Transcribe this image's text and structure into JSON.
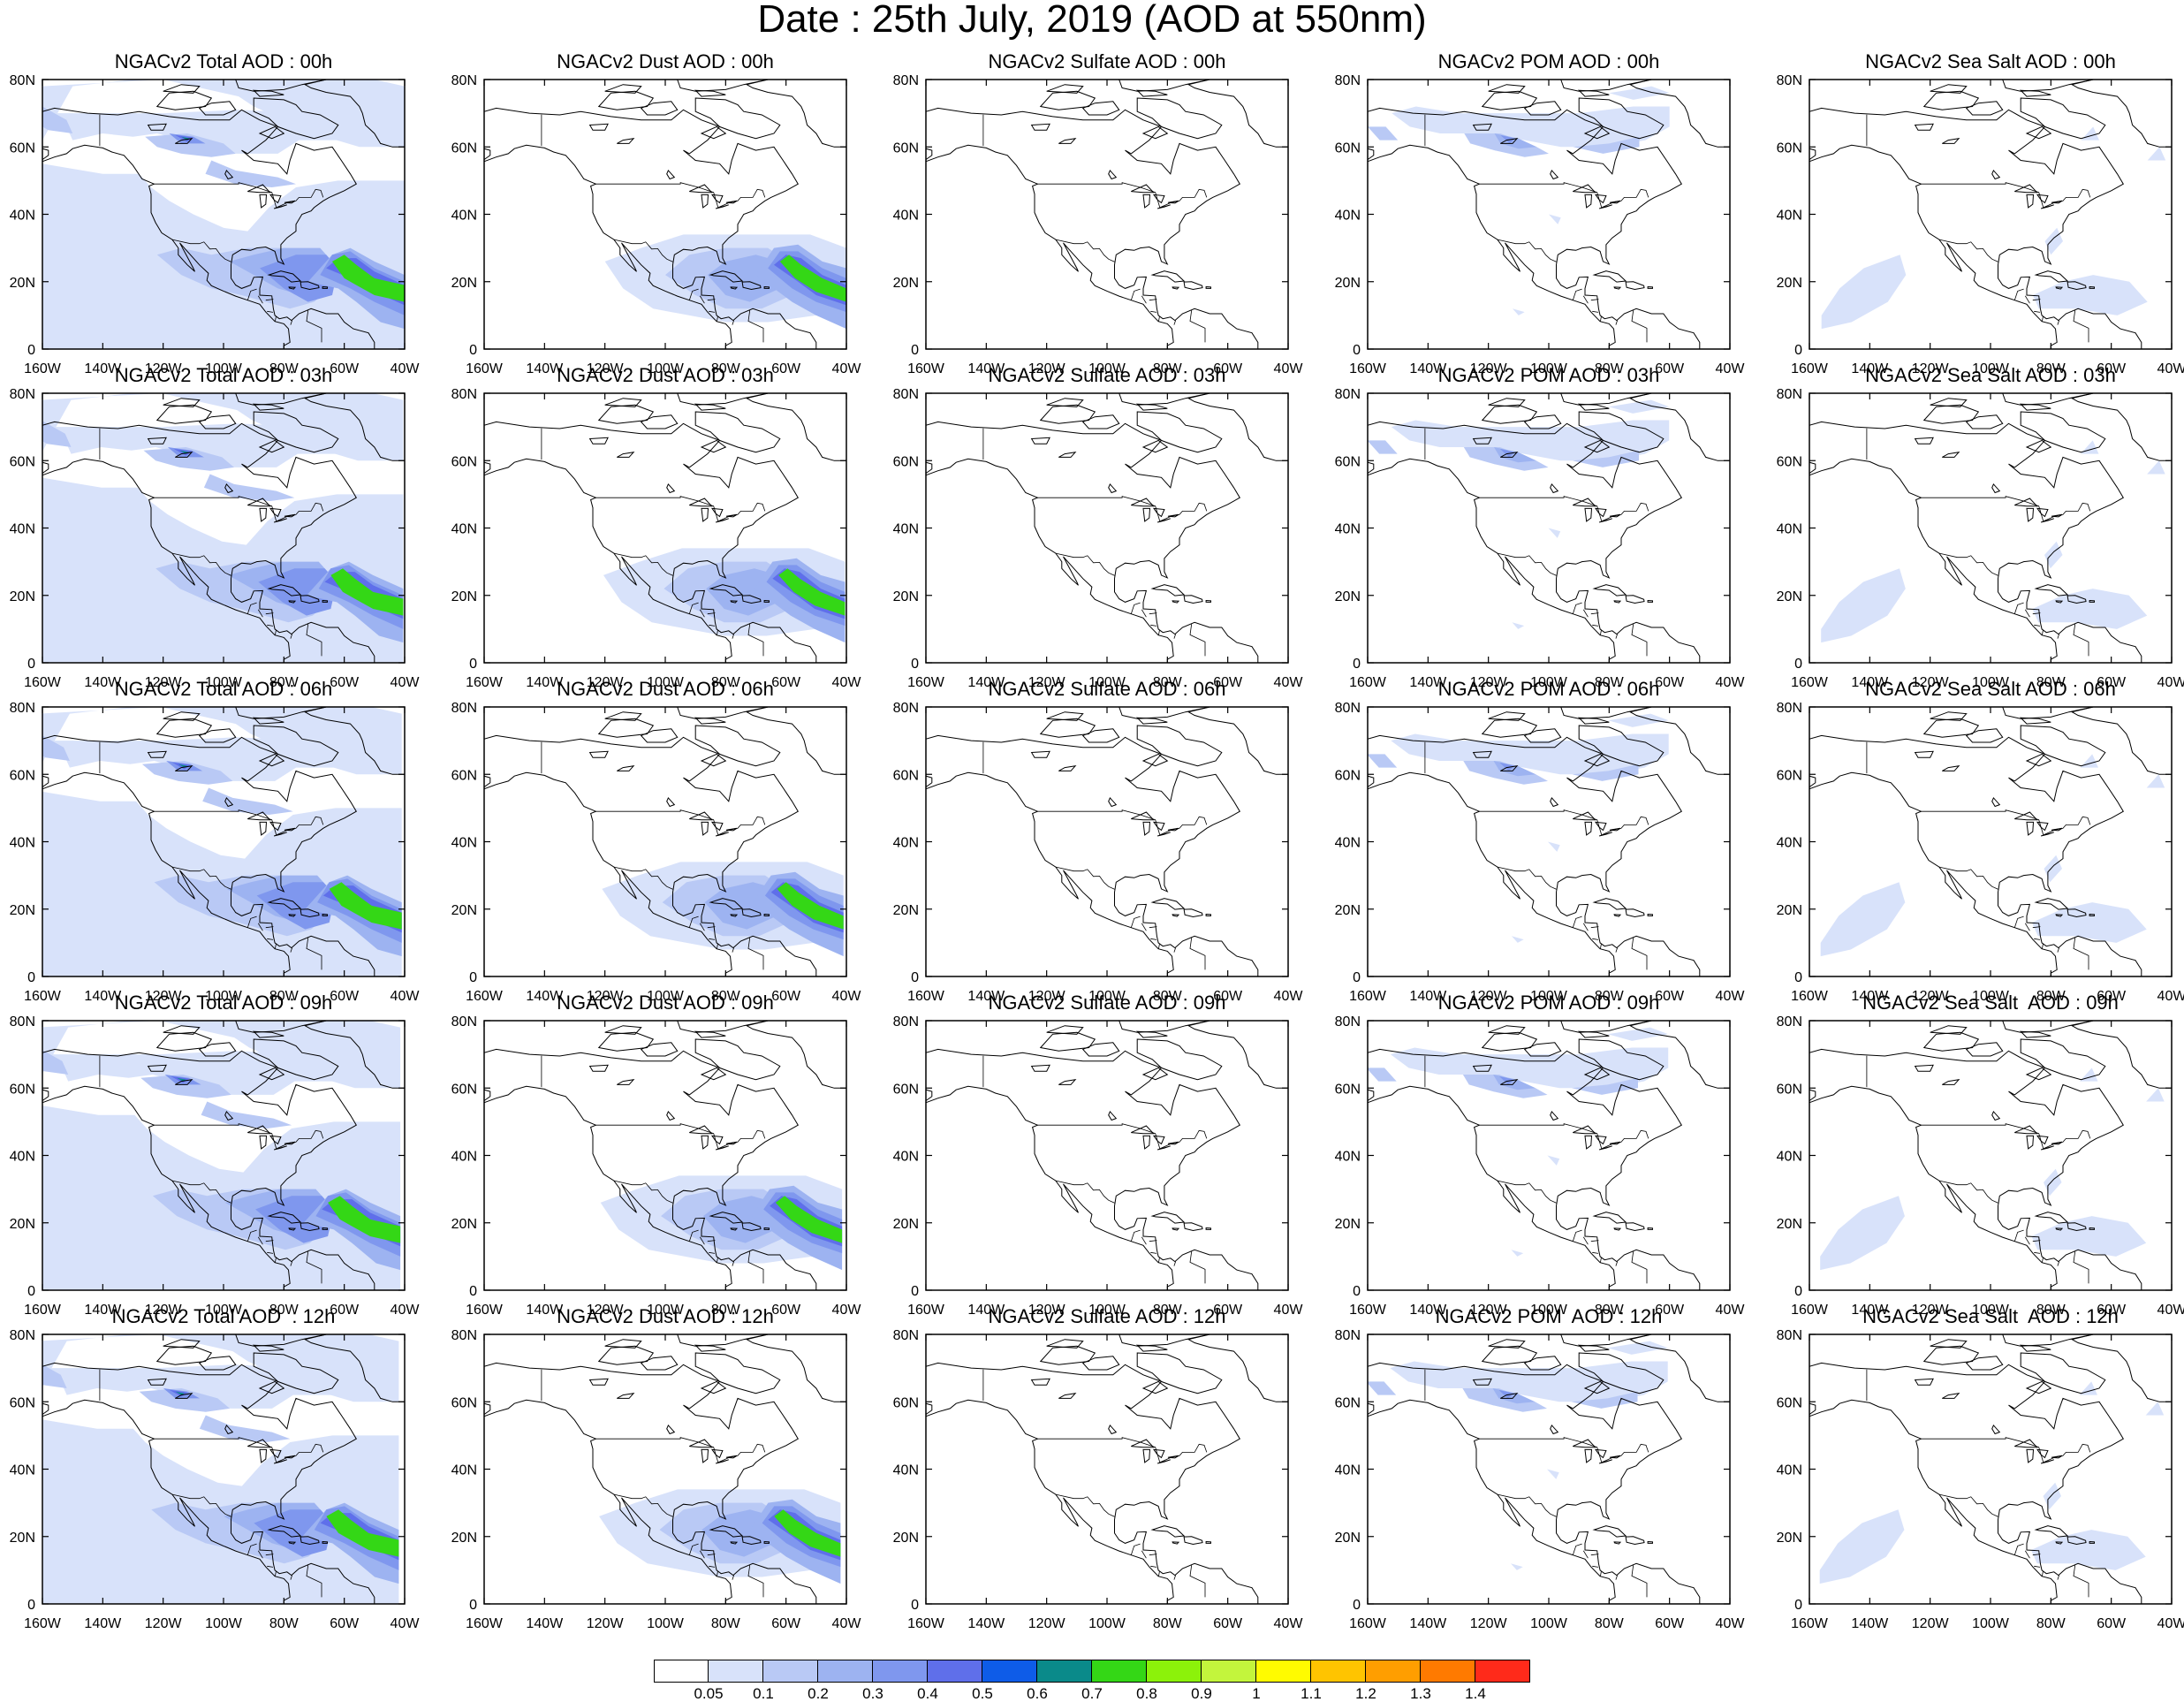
{
  "title": "Date : 25th July, 2019 (AOD at 550nm)",
  "panels": [
    {
      "title": "NGACv2 Total AOD : 00h",
      "species": "total"
    },
    {
      "title": "NGACv2 Dust AOD : 00h",
      "species": "dust"
    },
    {
      "title": "NGACv2 Sulfate AOD : 00h",
      "species": "sulfate"
    },
    {
      "title": "NGACv2 POM AOD : 00h",
      "species": "pom"
    },
    {
      "title": "NGACv2 Sea Salt AOD : 00h",
      "species": "seasalt"
    },
    {
      "title": "NGACv2 Total AOD : 03h",
      "species": "total"
    },
    {
      "title": "NGACv2 Dust AOD : 03h",
      "species": "dust"
    },
    {
      "title": "NGACv2 Sulfate AOD : 03h",
      "species": "sulfate"
    },
    {
      "title": "NGACv2 POM AOD : 03h",
      "species": "pom"
    },
    {
      "title": "NGACv2 Sea Salt AOD : 03h",
      "species": "seasalt"
    },
    {
      "title": "NGACv2 Total AOD : 06h",
      "species": "total"
    },
    {
      "title": "NGACv2 Dust AOD : 06h",
      "species": "dust"
    },
    {
      "title": "NGACv2 Sulfate AOD : 06h",
      "species": "sulfate"
    },
    {
      "title": "NGACv2 POM AOD : 06h",
      "species": "pom"
    },
    {
      "title": "NGACv2 Sea Salt AOD : 06h",
      "species": "seasalt"
    },
    {
      "title": "NGACv2 Total AOD : 09h",
      "species": "total"
    },
    {
      "title": "NGACv2 Dust AOD : 09h",
      "species": "dust"
    },
    {
      "title": "NGACv2 Sulfate AOD : 09h",
      "species": "sulfate"
    },
    {
      "title": "NGACv2 POM AOD : 09h",
      "species": "pom"
    },
    {
      "title": "NGACv2 Sea Salt  AOD : 09h",
      "species": "seasalt"
    },
    {
      "title": "NGACv2 Total AOD  : 12h",
      "species": "total"
    },
    {
      "title": "NGACv2 Dust AOD : 12h",
      "species": "dust"
    },
    {
      "title": "NGACv2 Sulfate AOD : 12h",
      "species": "sulfate"
    },
    {
      "title": "NGACv2 POM  AOD : 12h",
      "species": "pom"
    },
    {
      "title": "NGACv2 Sea Salt  AOD : 12h",
      "species": "seasalt"
    }
  ],
  "x_ticks": [
    "160W",
    "140W",
    "120W",
    "100W",
    "80W",
    "60W",
    "40W"
  ],
  "y_ticks": [
    "0",
    "20N",
    "40N",
    "60N",
    "80N"
  ],
  "colorbar": {
    "labels": [
      "0.05",
      "0.1",
      "0.2",
      "0.3",
      "0.4",
      "0.5",
      "0.6",
      "0.7",
      "0.8",
      "0.9",
      "1",
      "1.1",
      "1.2",
      "1.3",
      "1.4"
    ],
    "colors": [
      "#ffffff",
      "#d8e2fa",
      "#b9c9f5",
      "#9db3f1",
      "#7f97ee",
      "#5f6fea",
      "#0e5ce8",
      "#0a8a8a",
      "#34d716",
      "#8cf20a",
      "#c3f53c",
      "#fffb00",
      "#ffc400",
      "#ff9e00",
      "#ff7a00",
      "#ff2a1a"
    ]
  }
}
